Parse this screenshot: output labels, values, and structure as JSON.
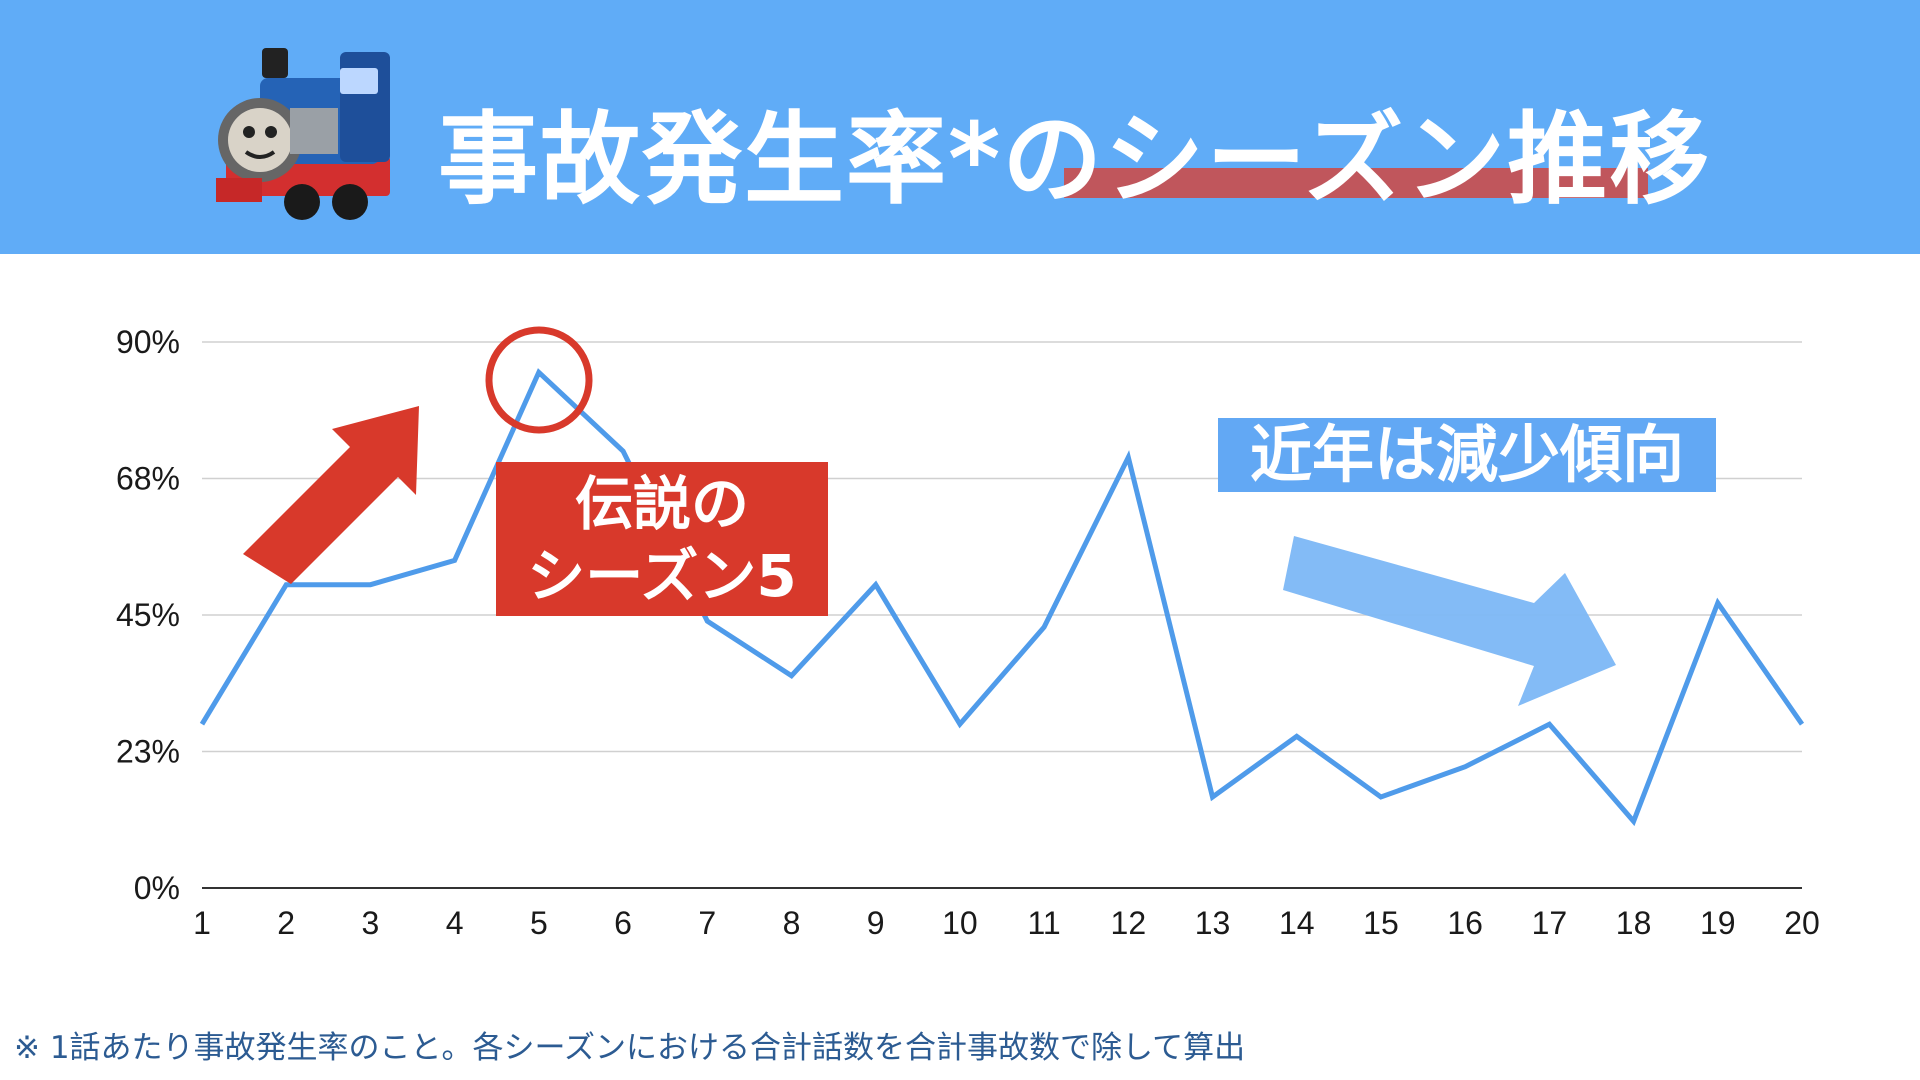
{
  "header": {
    "title": "事故発生率*のシーズン推移"
  },
  "callouts": {
    "season5_line1": "伝説の",
    "season5_line2": "シーズン5",
    "recent": "近年は減少傾向"
  },
  "footnote": "※ 1話あたり事故発生率のこと。各シーズンにおける合計話数を合計事故数で除して算出",
  "colors": {
    "header_bg": "#60acf7",
    "line": "#4f9bea",
    "accent_red": "#d8392b",
    "accent_blue": "#62a8f4"
  },
  "icons": {
    "train": "thomas-train-icon",
    "up_arrow": "arrow-up-right-icon",
    "down_arrow": "arrow-down-right-icon",
    "circle": "highlight-circle-icon"
  },
  "chart_data": {
    "type": "line",
    "x": [
      1,
      2,
      3,
      4,
      5,
      6,
      7,
      8,
      9,
      10,
      11,
      12,
      13,
      14,
      15,
      16,
      17,
      18,
      19,
      20
    ],
    "categories": [
      "1",
      "2",
      "3",
      "4",
      "5",
      "6",
      "7",
      "8",
      "9",
      "10",
      "11",
      "12",
      "13",
      "14",
      "15",
      "16",
      "17",
      "18",
      "19",
      "20"
    ],
    "series": [
      {
        "values": [
          27,
          50,
          50,
          54,
          85,
          72,
          44,
          35,
          50,
          27,
          43,
          71,
          15,
          25,
          15,
          20,
          27,
          11,
          47,
          27
        ]
      }
    ],
    "ylim": [
      0,
      90
    ],
    "yticks": [
      0,
      22.5,
      45,
      67.5,
      90
    ],
    "ytick_labels": [
      "0%",
      "23%",
      "45%",
      "68%",
      "90%"
    ],
    "grid": true,
    "highlight": {
      "x": 5
    }
  }
}
